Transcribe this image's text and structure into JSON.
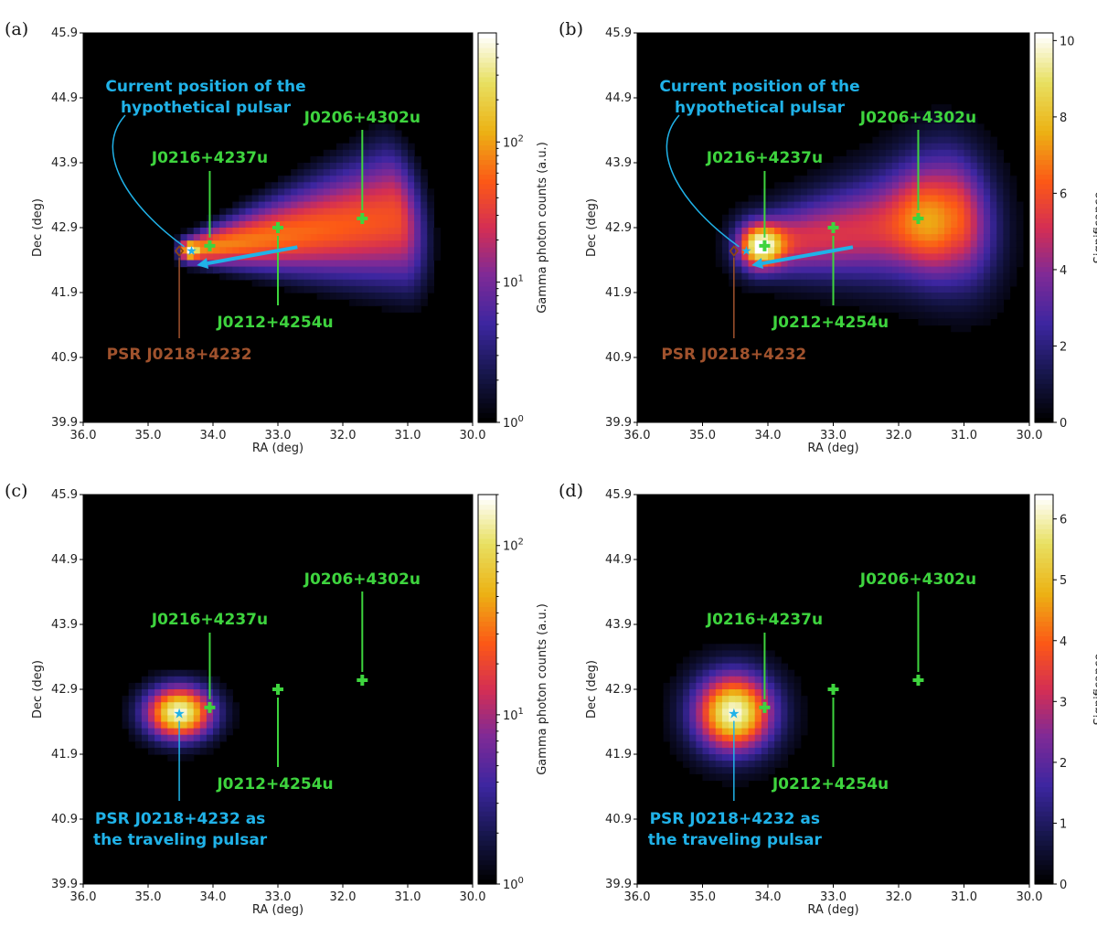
{
  "colors": {
    "cyan": "#20b2e8",
    "green": "#3ed43e",
    "brown": "#a0522d",
    "pulsar_marker": "#8b4513"
  },
  "chart_data": [
    {
      "type": "heatmap",
      "panel_label": "(a)",
      "xlabel": "RA (deg)",
      "ylabel": "Dec (deg)",
      "xlim": [
        36.0,
        30.0
      ],
      "ylim": [
        39.9,
        45.9
      ],
      "xticks": [
        "36.0",
        "35.0",
        "34.0",
        "33.0",
        "32.0",
        "31.0",
        "30.0"
      ],
      "yticks": [
        "39.9",
        "40.9",
        "41.9",
        "42.9",
        "43.9",
        "44.9",
        "45.9"
      ],
      "colorbar": {
        "label": "Gamma photon counts (a.u.)",
        "scale": "log",
        "ticks": [
          "10^0",
          "10^1",
          "10^2"
        ],
        "range": [
          1,
          600
        ]
      },
      "sources": [
        {
          "name": "J0216+4237u",
          "ra": 34.05,
          "dec": 42.62
        },
        {
          "name": "J0212+4254u",
          "ra": 33.0,
          "dec": 42.9
        },
        {
          "name": "J0206+4302u",
          "ra": 31.7,
          "dec": 43.04
        }
      ],
      "pulsar": {
        "name": "PSR J0218+4232",
        "ra": 34.52,
        "dec": 42.54,
        "marker": "diamond"
      },
      "hypothetical_pulsar": {
        "label": "Current position of the hypothetical pulsar",
        "ra": 34.33,
        "dec": 42.55
      },
      "motion_arrow": {
        "from": [
          32.7,
          42.6
        ],
        "to": [
          34.25,
          42.32
        ]
      },
      "field": {
        "kind": "trail",
        "head": [
          34.35,
          42.55
        ],
        "tail": [
          31.2,
          43.05
        ],
        "peak": 600
      }
    },
    {
      "type": "heatmap",
      "panel_label": "(b)",
      "xlabel": "RA (deg)",
      "ylabel": "Dec (deg)",
      "xlim": [
        36.0,
        30.0
      ],
      "ylim": [
        39.9,
        45.9
      ],
      "xticks": [
        "36.0",
        "35.0",
        "34.0",
        "33.0",
        "32.0",
        "31.0",
        "30.0"
      ],
      "yticks": [
        "39.9",
        "40.9",
        "41.9",
        "42.9",
        "43.9",
        "44.9",
        "45.9"
      ],
      "colorbar": {
        "label": "Significance",
        "scale": "linear",
        "ticks": [
          "0",
          "2",
          "4",
          "6",
          "8",
          "10"
        ],
        "range": [
          0,
          10.2
        ]
      },
      "sources": [
        {
          "name": "J0216+4237u",
          "ra": 34.05,
          "dec": 42.62
        },
        {
          "name": "J0212+4254u",
          "ra": 33.0,
          "dec": 42.9
        },
        {
          "name": "J0206+4302u",
          "ra": 31.7,
          "dec": 43.04
        }
      ],
      "pulsar": {
        "name": "PSR J0218+4232",
        "ra": 34.52,
        "dec": 42.54,
        "marker": "diamond"
      },
      "hypothetical_pulsar": {
        "label": "Current position of the hypothetical pulsar",
        "ra": 34.33,
        "dec": 42.55
      },
      "motion_arrow": {
        "from": [
          32.7,
          42.6
        ],
        "to": [
          34.25,
          42.32
        ]
      },
      "field": {
        "kind": "sig_trail",
        "head": [
          34.1,
          42.62
        ],
        "tail": [
          31.2,
          43.05
        ],
        "peak": 10.2
      }
    },
    {
      "type": "heatmap",
      "panel_label": "(c)",
      "xlabel": "RA (deg)",
      "ylabel": "Dec (deg)",
      "xlim": [
        36.0,
        30.0
      ],
      "ylim": [
        39.9,
        45.9
      ],
      "xticks": [
        "36.0",
        "35.0",
        "34.0",
        "33.0",
        "32.0",
        "31.0",
        "30.0"
      ],
      "yticks": [
        "39.9",
        "40.9",
        "41.9",
        "42.9",
        "43.9",
        "44.9",
        "45.9"
      ],
      "colorbar": {
        "label": "Gamma photon counts (a.u.)",
        "scale": "log",
        "ticks": [
          "10^0",
          "10^1",
          "10^2"
        ],
        "range": [
          1,
          200
        ]
      },
      "sources": [
        {
          "name": "J0216+4237u",
          "ra": 34.05,
          "dec": 42.62
        },
        {
          "name": "J0212+4254u",
          "ra": 33.0,
          "dec": 42.9
        },
        {
          "name": "J0206+4302u",
          "ra": 31.7,
          "dec": 43.04
        }
      ],
      "pulsar": {
        "name": "PSR J0218+4232 as the traveling pulsar",
        "ra": 34.52,
        "dec": 42.54,
        "marker": "star"
      },
      "field": {
        "kind": "blob",
        "center": [
          34.52,
          42.54
        ],
        "peak": 200
      }
    },
    {
      "type": "heatmap",
      "panel_label": "(d)",
      "xlabel": "RA (deg)",
      "ylabel": "Dec (deg)",
      "xlim": [
        36.0,
        30.0
      ],
      "ylim": [
        39.9,
        45.9
      ],
      "xticks": [
        "36.0",
        "35.0",
        "34.0",
        "33.0",
        "32.0",
        "31.0",
        "30.0"
      ],
      "yticks": [
        "39.9",
        "40.9",
        "41.9",
        "42.9",
        "43.9",
        "44.9",
        "45.9"
      ],
      "colorbar": {
        "label": "Significance",
        "scale": "linear",
        "ticks": [
          "0",
          "1",
          "2",
          "3",
          "4",
          "5",
          "6"
        ],
        "range": [
          0,
          6.4
        ]
      },
      "sources": [
        {
          "name": "J0216+4237u",
          "ra": 34.05,
          "dec": 42.62
        },
        {
          "name": "J0212+4254u",
          "ra": 33.0,
          "dec": 42.9
        },
        {
          "name": "J0206+4302u",
          "ra": 31.7,
          "dec": 43.04
        }
      ],
      "pulsar": {
        "name": "PSR J0218+4232 as the traveling pulsar",
        "ra": 34.52,
        "dec": 42.54,
        "marker": "star"
      },
      "field": {
        "kind": "sig_blob",
        "center": [
          34.52,
          42.54
        ],
        "peak": 6.4
      }
    }
  ]
}
